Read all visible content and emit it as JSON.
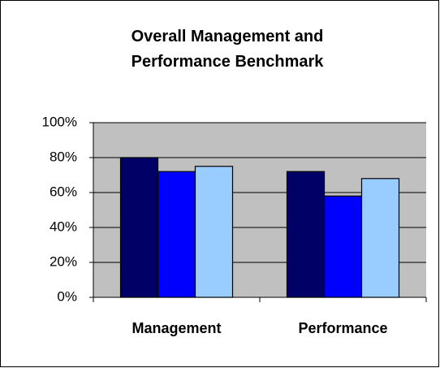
{
  "chart_data": {
    "type": "bar",
    "title": "Overall Management and Performance Benchmark",
    "categories": [
      "Management",
      "Performance"
    ],
    "series": [
      {
        "color": "#000066",
        "values": [
          80,
          72
        ]
      },
      {
        "color": "#0000ff",
        "values": [
          72,
          58
        ]
      },
      {
        "color": "#99ccff",
        "values": [
          75,
          68
        ]
      }
    ],
    "ylim": [
      0,
      100
    ],
    "yticks": [
      {
        "value": 0,
        "label": "0%"
      },
      {
        "value": 20,
        "label": "20%"
      },
      {
        "value": 40,
        "label": "40%"
      },
      {
        "value": 60,
        "label": "60%"
      },
      {
        "value": 80,
        "label": "80%"
      },
      {
        "value": 100,
        "label": "100%"
      }
    ],
    "grid": true
  }
}
